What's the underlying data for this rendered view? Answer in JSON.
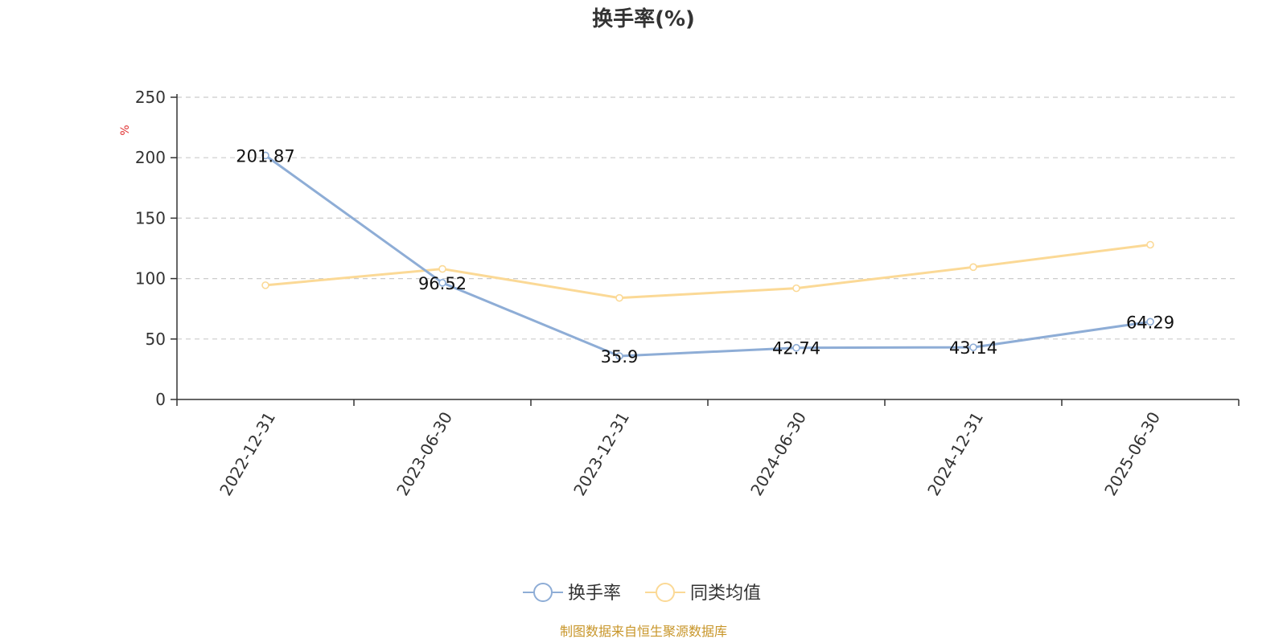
{
  "chart_data": {
    "type": "line",
    "title": "换手率(%)",
    "ylabel": "%",
    "categories": [
      "2022-12-31",
      "2023-06-30",
      "2023-12-31",
      "2024-06-30",
      "2024-12-31",
      "2025-06-30"
    ],
    "ylim": [
      0,
      250
    ],
    "yticks": [
      0,
      50,
      100,
      150,
      200,
      250
    ],
    "grid": true,
    "legend_position": "bottom-center",
    "series": [
      {
        "name": "换手率",
        "color": "#8eadd6",
        "values": [
          201.87,
          96.52,
          35.9,
          42.74,
          43.14,
          64.29
        ],
        "labels": [
          "201.87",
          "96.52",
          "35.9",
          "42.74",
          "43.14",
          "64.29"
        ]
      },
      {
        "name": "同类均值",
        "color": "#fbd996",
        "values": [
          94.5,
          108.0,
          84.0,
          92.0,
          109.5,
          128.0
        ]
      }
    ]
  },
  "source_text": "制图数据来自恒生聚源数据库",
  "colors": {
    "axis": "#333333",
    "grid": "#cccccc",
    "unit": "#e03030",
    "source": "#c8962a"
  }
}
